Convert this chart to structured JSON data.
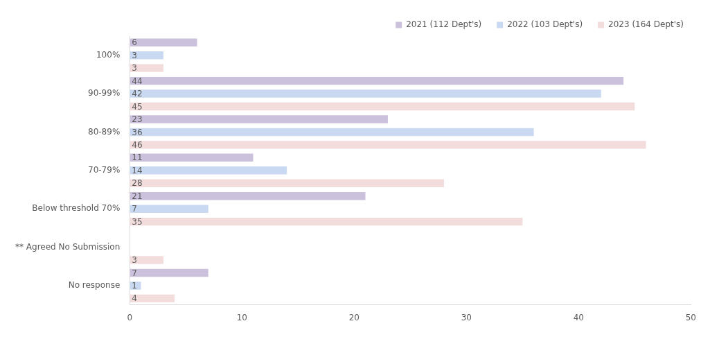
{
  "chart_data": {
    "type": "bar",
    "orientation": "horizontal",
    "categories": [
      "100%",
      "90-99%",
      "80-89%",
      "70-79%",
      "Below threshold 70%",
      "** Agreed No Submission",
      "No response"
    ],
    "series": [
      {
        "name": "2021 (112 Dept's)",
        "color": "#ccc1dd",
        "values": [
          6,
          44,
          23,
          11,
          21,
          null,
          7
        ]
      },
      {
        "name": "2022 (103 Dept's)",
        "color": "#c9d9f1",
        "values": [
          3,
          42,
          36,
          14,
          7,
          null,
          1
        ]
      },
      {
        "name": "2023 (164 Dept's)",
        "color": "#f2dcdc",
        "values": [
          3,
          45,
          46,
          28,
          35,
          3,
          4
        ]
      }
    ],
    "xlim": [
      0,
      50
    ],
    "xticks": [
      0,
      10,
      20,
      30,
      40,
      50
    ],
    "data_labels": true,
    "legend": "top right",
    "grid": false
  }
}
